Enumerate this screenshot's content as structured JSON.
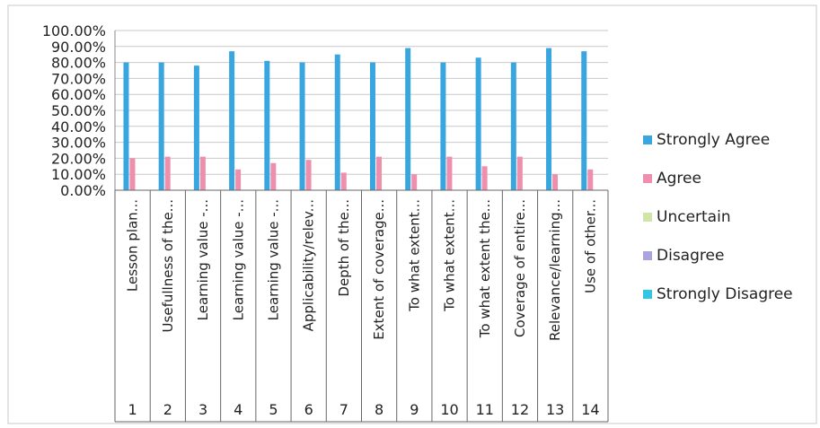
{
  "chart_data": {
    "type": "bar",
    "yticks": [
      "100.00%",
      "90.00%",
      "80.00%",
      "70.00%",
      "60.00%",
      "50.00%",
      "40.00%",
      "30.00%",
      "20.00%",
      "10.00%",
      "0.00%"
    ],
    "ylim": [
      0,
      100
    ],
    "grid": true,
    "legend_position": "right",
    "categories": [
      {
        "number": "1",
        "label": "Lesson plan..."
      },
      {
        "number": "2",
        "label": "Usefullness of the..."
      },
      {
        "number": "3",
        "label": "Learning value -..."
      },
      {
        "number": "4",
        "label": "Learning value -..."
      },
      {
        "number": "5",
        "label": "Learning value -..."
      },
      {
        "number": "6",
        "label": "Applicability/relev..."
      },
      {
        "number": "7",
        "label": "Depth of the..."
      },
      {
        "number": "8",
        "label": "Extent of coverage..."
      },
      {
        "number": "9",
        "label": "To what extent..."
      },
      {
        "number": "10",
        "label": "To what extent..."
      },
      {
        "number": "11",
        "label": "To what extent the..."
      },
      {
        "number": "12",
        "label": "Coverage of entire..."
      },
      {
        "number": "13",
        "label": "Relevance/learning..."
      },
      {
        "number": "14",
        "label": "Use of other..."
      }
    ],
    "series": [
      {
        "name": "Strongly Agree",
        "color": "#3aa6df",
        "values": [
          80,
          80,
          78,
          87,
          81,
          80,
          85,
          80,
          89,
          80,
          83,
          80,
          89,
          87
        ]
      },
      {
        "name": "Agree",
        "color": "#ee8fae",
        "values": [
          20,
          21,
          21,
          13,
          17,
          19,
          11,
          21,
          10,
          21,
          15,
          21,
          10,
          13
        ]
      },
      {
        "name": "Uncertain",
        "color": "#cfe6a6",
        "values": [
          0,
          0,
          0,
          0,
          0,
          0,
          0,
          0,
          0,
          0,
          0,
          0,
          0,
          0
        ]
      },
      {
        "name": "Disagree",
        "color": "#a9a4dc",
        "values": [
          0,
          0,
          0,
          0,
          0,
          0,
          0,
          0,
          0,
          0,
          0,
          0,
          0,
          0
        ]
      },
      {
        "name": "Strongly Disagree",
        "color": "#33c6e4",
        "values": [
          0,
          0,
          0,
          0,
          0,
          0,
          0,
          0,
          0,
          0,
          0,
          0,
          0,
          0
        ]
      }
    ]
  }
}
